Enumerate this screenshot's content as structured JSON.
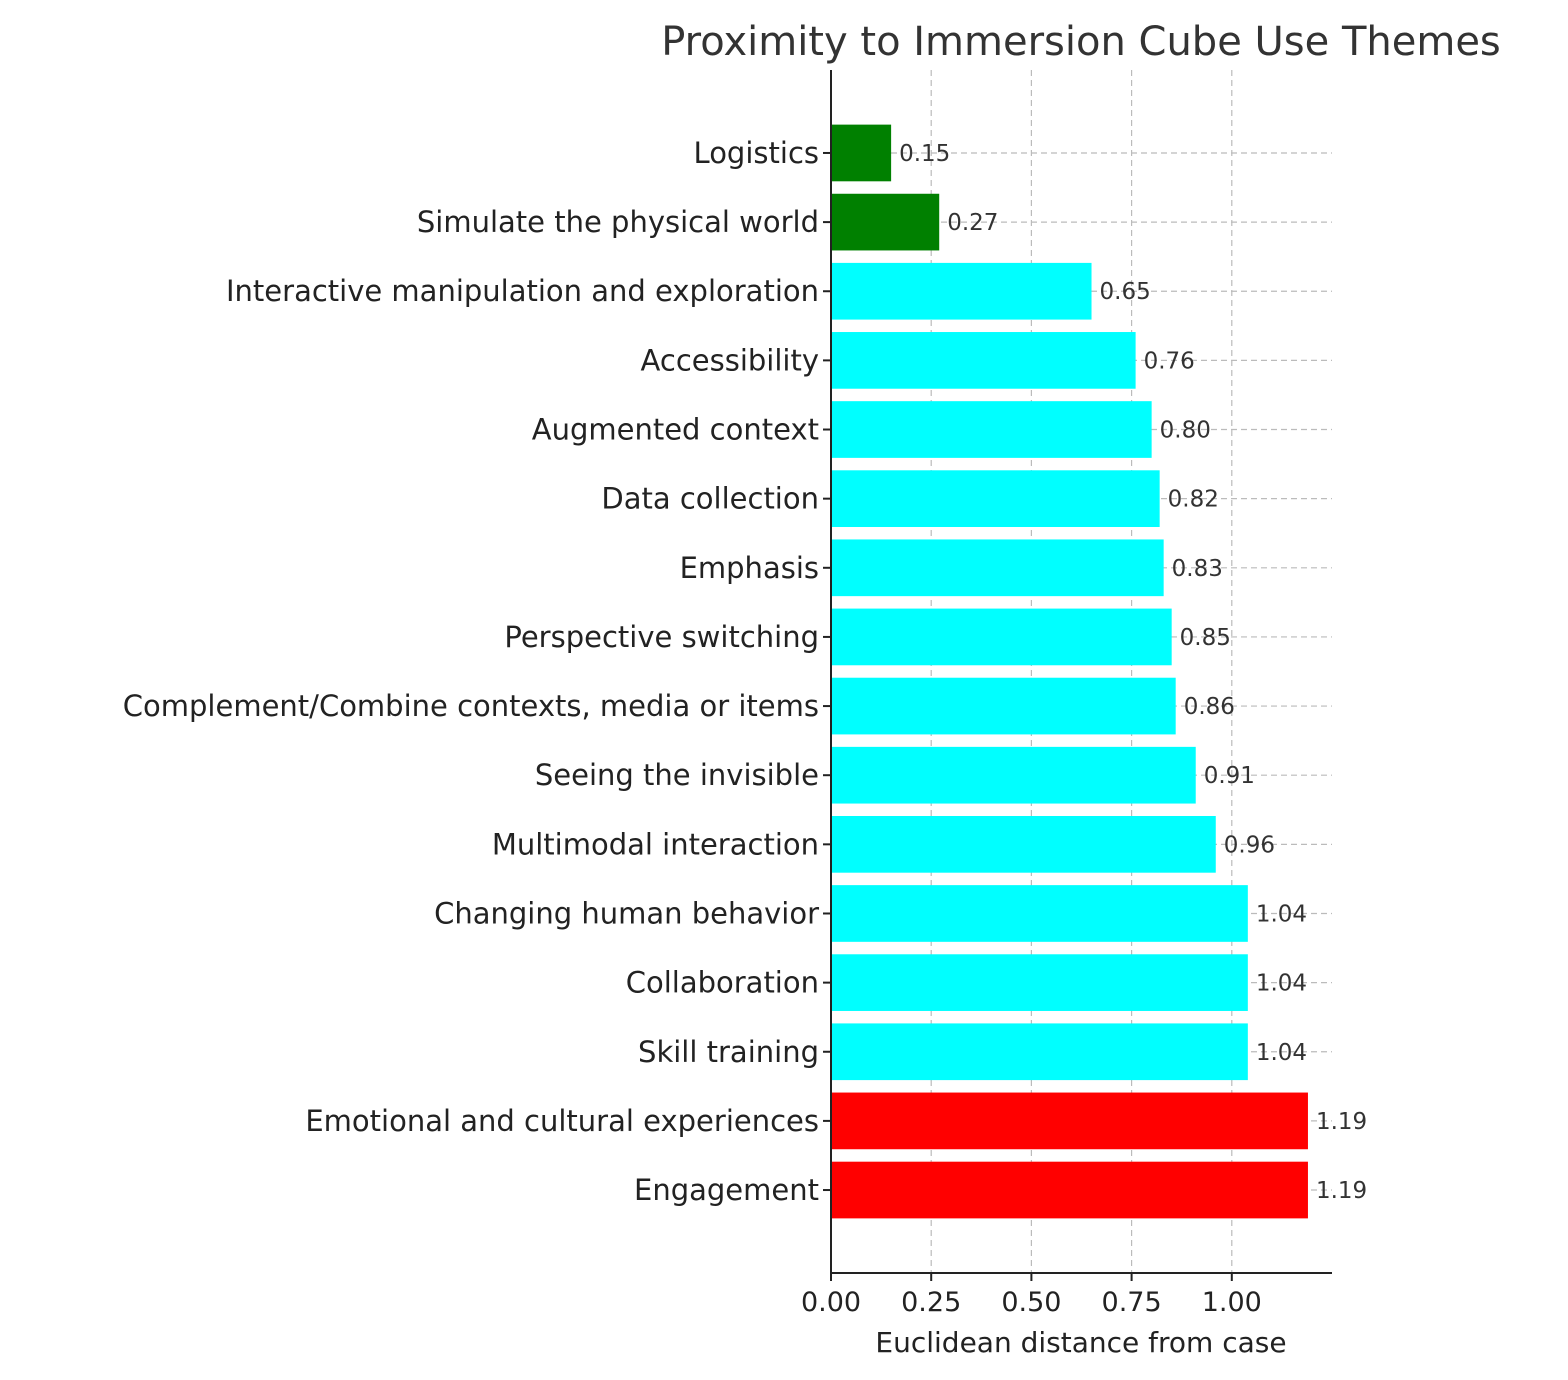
{
  "chart_data": {
    "type": "bar",
    "orientation": "horizontal",
    "title": "Proximity to Immersion Cube Use Themes",
    "xlabel": "Euclidean distance from case",
    "ylabel": "",
    "xlim": [
      0,
      1.25
    ],
    "xticks": [
      "0.00",
      "0.25",
      "0.50",
      "0.75",
      "1.00"
    ],
    "grid": true,
    "categories": [
      "Logistics",
      "Simulate the physical world",
      "Interactive manipulation and exploration",
      "Accessibility",
      "Augmented context",
      "Data collection",
      "Emphasis",
      "Perspective switching",
      "Complement/Combine contexts, media or items",
      "Seeing the invisible",
      "Multimodal interaction",
      "Changing human behavior",
      "Collaboration",
      "Skill training",
      "Emotional and cultural experiences",
      "Engagement"
    ],
    "values": [
      0.15,
      0.27,
      0.65,
      0.76,
      0.8,
      0.82,
      0.83,
      0.85,
      0.86,
      0.91,
      0.96,
      1.04,
      1.04,
      1.04,
      1.19,
      1.19
    ],
    "value_labels": [
      "0.15",
      "0.27",
      "0.65",
      "0.76",
      "0.80",
      "0.82",
      "0.83",
      "0.85",
      "0.86",
      "0.91",
      "0.96",
      "1.04",
      "1.04",
      "1.04",
      "1.19",
      "1.19"
    ],
    "colors": [
      "#008000",
      "#008000",
      "#00ffff",
      "#00ffff",
      "#00ffff",
      "#00ffff",
      "#00ffff",
      "#00ffff",
      "#00ffff",
      "#00ffff",
      "#00ffff",
      "#00ffff",
      "#00ffff",
      "#00ffff",
      "#ff0000",
      "#ff0000"
    ]
  }
}
